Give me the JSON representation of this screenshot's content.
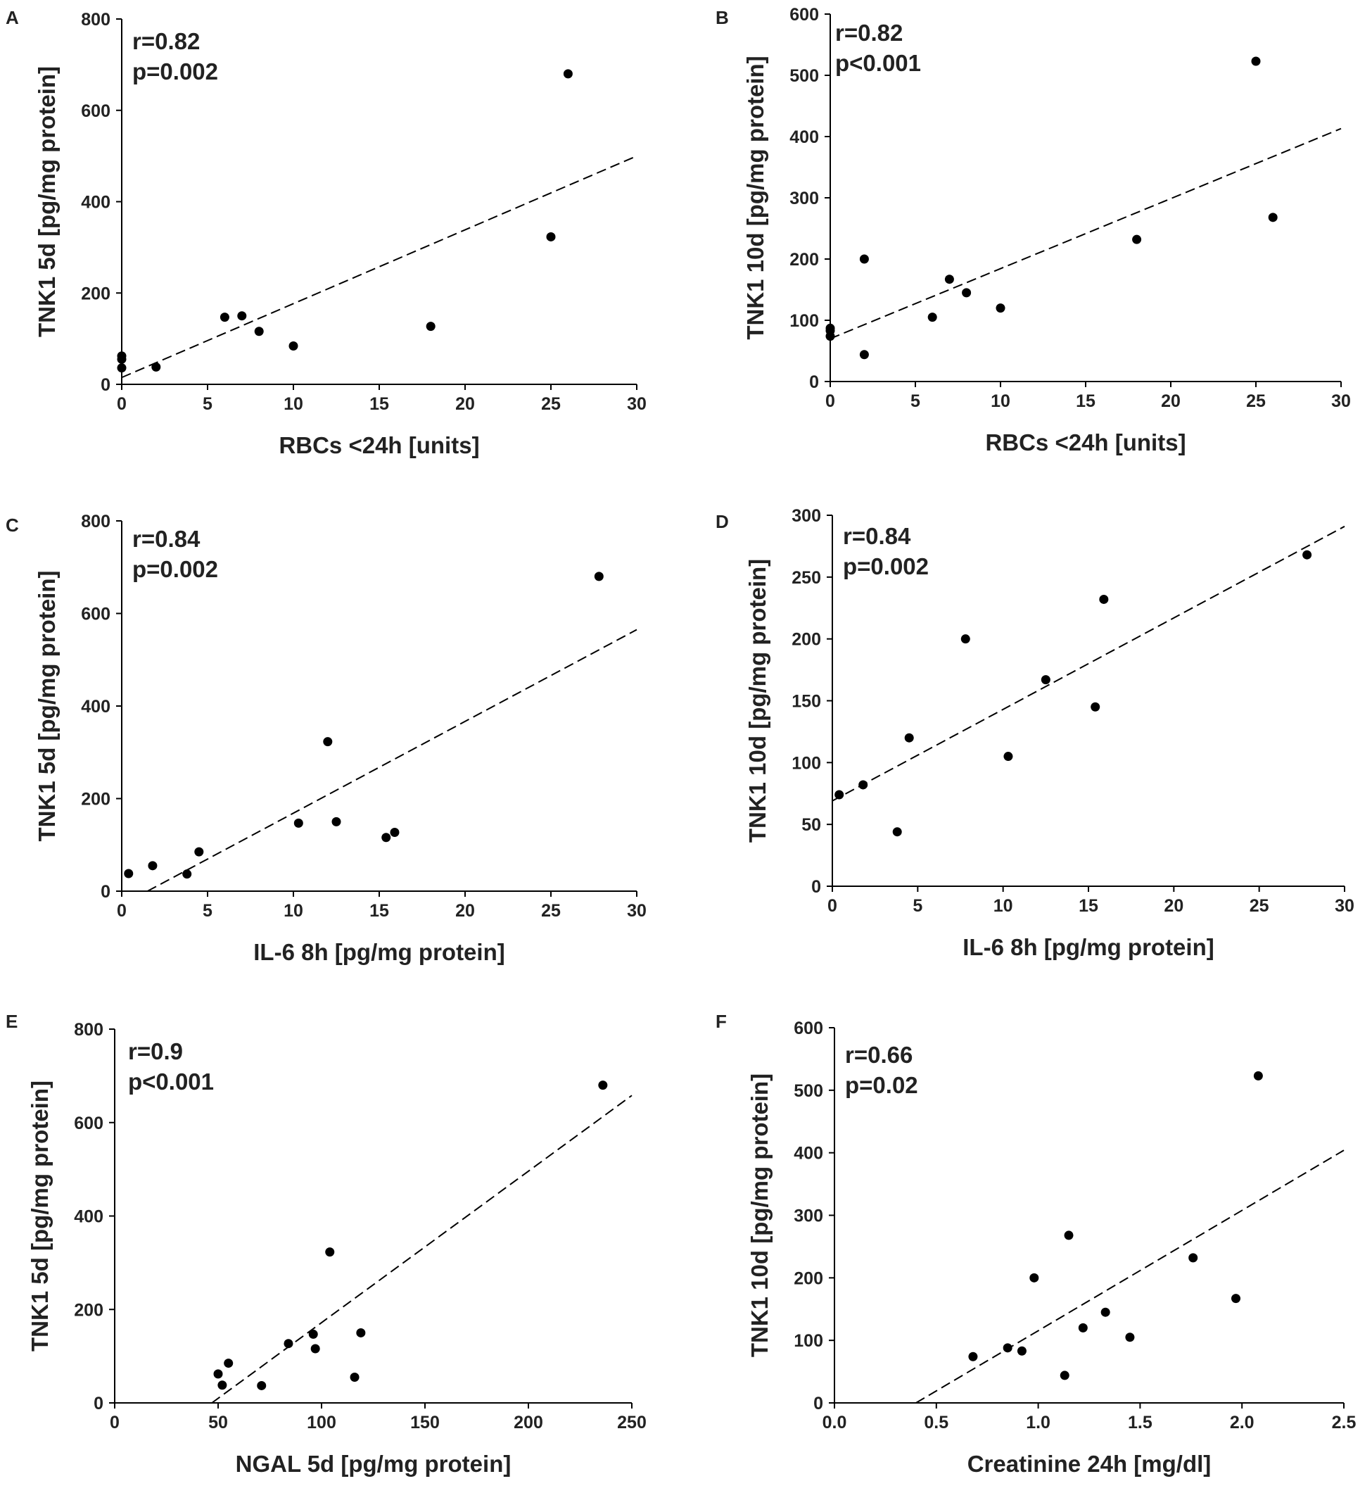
{
  "chart_data": [
    {
      "panel": "A",
      "type": "scatter",
      "stats": [
        "r=0.82",
        "p=0.002"
      ],
      "xlabel": "RBCs <24h [units]",
      "ylabel": "TNK1 5d [pg/mg protein]",
      "xlim": [
        0,
        30
      ],
      "ylim": [
        0,
        800
      ],
      "xticks": [
        "0",
        "5",
        "10",
        "15",
        "20",
        "25",
        "30"
      ],
      "yticks": [
        "0",
        "200",
        "400",
        "600",
        "800"
      ],
      "points": [
        [
          0,
          36
        ],
        [
          0,
          55
        ],
        [
          0,
          62
        ],
        [
          2,
          38
        ],
        [
          6,
          147
        ],
        [
          7,
          150
        ],
        [
          8,
          116
        ],
        [
          10,
          84
        ],
        [
          18,
          127
        ],
        [
          25,
          323
        ],
        [
          26,
          680
        ]
      ],
      "trendline": [
        [
          0,
          15
        ],
        [
          30,
          500
        ]
      ]
    },
    {
      "panel": "B",
      "type": "scatter",
      "stats": [
        "r=0.82",
        "p<0.001"
      ],
      "xlabel": "RBCs <24h [units]",
      "ylabel": "TNK1 10d [pg/mg protein]",
      "xlim": [
        0,
        30
      ],
      "ylim": [
        0,
        600
      ],
      "xticks": [
        "0",
        "5",
        "10",
        "15",
        "20",
        "25",
        "30"
      ],
      "yticks": [
        "0",
        "100",
        "200",
        "300",
        "400",
        "500",
        "600"
      ],
      "points": [
        [
          0,
          74
        ],
        [
          0,
          83
        ],
        [
          0,
          87
        ],
        [
          2,
          44
        ],
        [
          2,
          200
        ],
        [
          6,
          105
        ],
        [
          7,
          167
        ],
        [
          8,
          145
        ],
        [
          10,
          120
        ],
        [
          18,
          232
        ],
        [
          25,
          523
        ],
        [
          26,
          268
        ]
      ],
      "trendline": [
        [
          0,
          70
        ],
        [
          30,
          413
        ]
      ]
    },
    {
      "panel": "C",
      "type": "scatter",
      "stats": [
        "r=0.84",
        "p=0.002"
      ],
      "xlabel": "IL-6 8h [pg/mg protein]",
      "ylabel": "TNK1 5d [pg/mg protein]",
      "xlim": [
        0,
        30
      ],
      "ylim": [
        0,
        800
      ],
      "xticks": [
        "0",
        "5",
        "10",
        "15",
        "20",
        "25",
        "30"
      ],
      "yticks": [
        "0",
        "200",
        "400",
        "600",
        "800"
      ],
      "points": [
        [
          0.4,
          38
        ],
        [
          1.8,
          55
        ],
        [
          3.8,
          37
        ],
        [
          4.5,
          85
        ],
        [
          10.3,
          147
        ],
        [
          12,
          323
        ],
        [
          12.5,
          150
        ],
        [
          15.4,
          116
        ],
        [
          15.9,
          127
        ],
        [
          27.8,
          680
        ]
      ],
      "trendline": [
        [
          1.5,
          0
        ],
        [
          30,
          565
        ]
      ]
    },
    {
      "panel": "D",
      "type": "scatter",
      "stats": [
        "r=0.84",
        "p=0.002"
      ],
      "xlabel": "IL-6 8h [pg/mg protein]",
      "ylabel": "TNK1 10d [pg/mg protein]",
      "xlim": [
        0,
        30
      ],
      "ylim": [
        0,
        300
      ],
      "xticks": [
        "0",
        "5",
        "10",
        "15",
        "20",
        "25",
        "30"
      ],
      "yticks": [
        "0",
        "50",
        "100",
        "150",
        "200",
        "250",
        "300"
      ],
      "points": [
        [
          0.4,
          74
        ],
        [
          1.8,
          82
        ],
        [
          3.8,
          44
        ],
        [
          4.5,
          120
        ],
        [
          7.8,
          200
        ],
        [
          10.3,
          105
        ],
        [
          12.5,
          167
        ],
        [
          15.4,
          145
        ],
        [
          15.9,
          232
        ],
        [
          27.8,
          268
        ]
      ],
      "trendline": [
        [
          0,
          69
        ],
        [
          30,
          291
        ]
      ]
    },
    {
      "panel": "E",
      "type": "scatter",
      "stats": [
        "r=0.9",
        "p<0.001"
      ],
      "xlabel": "NGAL 5d [pg/mg protein]",
      "ylabel": "TNK1 5d [pg/mg protein]",
      "xlim": [
        0,
        250
      ],
      "ylim": [
        0,
        800
      ],
      "xticks": [
        "0",
        "50",
        "100",
        "150",
        "200",
        "250"
      ],
      "yticks": [
        "0",
        "200",
        "400",
        "600",
        "800"
      ],
      "points": [
        [
          50,
          62
        ],
        [
          52,
          38
        ],
        [
          55,
          85
        ],
        [
          71,
          37
        ],
        [
          84,
          127
        ],
        [
          96,
          147
        ],
        [
          97,
          116
        ],
        [
          104,
          323
        ],
        [
          116,
          55
        ],
        [
          119,
          150
        ],
        [
          236,
          680
        ]
      ],
      "trendline": [
        [
          47,
          0
        ],
        [
          250,
          658
        ]
      ]
    },
    {
      "panel": "F",
      "type": "scatter",
      "stats": [
        "r=0.66",
        "p=0.02"
      ],
      "xlabel": "Creatinine 24h [mg/dl]",
      "ylabel": "TNK1 10d [pg/mg protein]",
      "xlim": [
        0,
        2.5
      ],
      "ylim": [
        0,
        600
      ],
      "xticks": [
        "0.0",
        "0.5",
        "1.0",
        "1.5",
        "2.0",
        "2.5"
      ],
      "yticks": [
        "0",
        "100",
        "200",
        "300",
        "400",
        "500",
        "600"
      ],
      "points": [
        [
          0.68,
          74
        ],
        [
          0.85,
          88
        ],
        [
          0.92,
          83
        ],
        [
          0.98,
          200
        ],
        [
          1.13,
          44
        ],
        [
          1.15,
          268
        ],
        [
          1.22,
          120
        ],
        [
          1.33,
          145
        ],
        [
          1.45,
          105
        ],
        [
          1.76,
          232
        ],
        [
          1.97,
          167
        ],
        [
          2.08,
          523
        ]
      ],
      "trendline": [
        [
          0.4,
          0
        ],
        [
          2.5,
          404
        ]
      ]
    }
  ]
}
